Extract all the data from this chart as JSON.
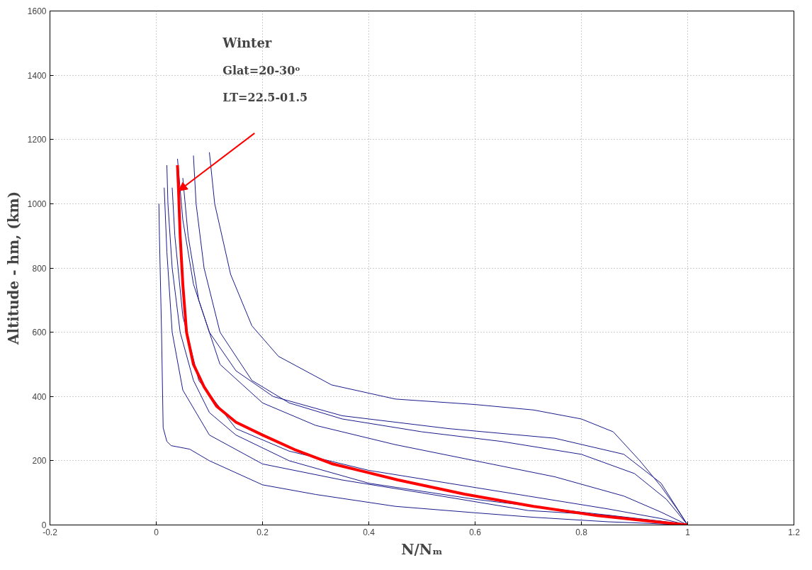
{
  "chart_data": {
    "type": "line",
    "xlabel": "N/Nₘ",
    "ylabel": "Altitude - hm, (km)",
    "xlim": [
      -0.2,
      1.2
    ],
    "xticks": [
      -0.2,
      0,
      0.2,
      0.4,
      0.6,
      0.8,
      1,
      1.2
    ],
    "ylim": [
      0,
      1600
    ],
    "yticks": [
      0,
      200,
      400,
      600,
      800,
      1000,
      1200,
      1400,
      1600
    ],
    "grid": true,
    "marker": "none",
    "line_style": "solid",
    "annotations": [
      "Winter",
      "Glat=20-30ᵒ",
      "LT=22.5-01.5"
    ],
    "series": [
      {
        "color": "#1a1a8c",
        "x": [
          0.1,
          0.11,
          0.14,
          0.18,
          0.23,
          0.33,
          0.45,
          0.6,
          0.71,
          0.8,
          0.86,
          0.91,
          0.95,
          0.98,
          1.0
        ],
        "values": [
          1160,
          1000,
          780,
          620,
          525,
          436,
          392,
          375,
          358,
          330,
          290,
          200,
          120,
          50,
          0
        ]
      },
      {
        "color": "#1a1a8c",
        "x": [
          0.005,
          0.006,
          0.01,
          0.013,
          0.02,
          0.028,
          0.063,
          0.1,
          0.2,
          0.3,
          0.45,
          0.6,
          0.71,
          0.85,
          1.0
        ],
        "values": [
          1000,
          900,
          600,
          303,
          260,
          247,
          236,
          200,
          125,
          95,
          58,
          38,
          24,
          10,
          0
        ]
      },
      {
        "color": "#1a1a8c",
        "x": [
          0.02,
          0.022,
          0.03,
          0.045,
          0.07,
          0.1,
          0.15,
          0.25,
          0.4,
          0.6,
          0.8,
          0.95,
          1.0
        ],
        "values": [
          1120,
          1000,
          800,
          600,
          450,
          350,
          280,
          200,
          130,
          80,
          40,
          12,
          0
        ]
      },
      {
        "color": "#1a1a8c",
        "x": [
          0.07,
          0.075,
          0.09,
          0.12,
          0.18,
          0.25,
          0.35,
          0.5,
          0.65,
          0.8,
          0.9,
          0.96,
          1.0
        ],
        "values": [
          1150,
          1000,
          800,
          600,
          450,
          380,
          330,
          290,
          260,
          220,
          160,
          80,
          0
        ]
      },
      {
        "color": "#1a1a8c",
        "x": [
          0.05,
          0.06,
          0.08,
          0.12,
          0.2,
          0.3,
          0.45,
          0.6,
          0.75,
          0.88,
          0.95,
          1.0
        ],
        "values": [
          1080,
          900,
          700,
          500,
          380,
          310,
          250,
          200,
          150,
          90,
          40,
          0
        ]
      },
      {
        "color": "#1a1a8c",
        "x": [
          0.03,
          0.035,
          0.05,
          0.08,
          0.15,
          0.25,
          0.4,
          0.55,
          0.7,
          0.85,
          0.95,
          1.0
        ],
        "values": [
          1050,
          900,
          650,
          450,
          300,
          230,
          170,
          130,
          90,
          50,
          20,
          0
        ]
      },
      {
        "color": "#1a1a8c",
        "x": [
          0.04,
          0.05,
          0.07,
          0.1,
          0.15,
          0.22,
          0.35,
          0.55,
          0.75,
          0.88,
          0.95,
          1.0
        ],
        "values": [
          1140,
          950,
          750,
          600,
          480,
          400,
          340,
          300,
          270,
          220,
          130,
          0
        ]
      },
      {
        "color": "#1a1a8c",
        "x": [
          0.015,
          0.02,
          0.03,
          0.05,
          0.1,
          0.2,
          0.35,
          0.5,
          0.7,
          0.85,
          1.0
        ],
        "values": [
          1050,
          850,
          600,
          420,
          280,
          190,
          140,
          100,
          45,
          30,
          0
        ]
      },
      {
        "color": "#ff0000",
        "x": [
          0.04,
          0.042,
          0.045,
          0.05,
          0.057,
          0.07,
          0.09,
          0.114,
          0.15,
          0.2,
          0.26,
          0.33,
          0.455,
          0.58,
          0.71,
          0.83,
          0.94,
          1.0
        ],
        "values": [
          1120,
          1040,
          900,
          750,
          600,
          500,
          430,
          369,
          320,
          280,
          235,
          191,
          140,
          96,
          58,
          29,
          10,
          0
        ]
      }
    ]
  }
}
